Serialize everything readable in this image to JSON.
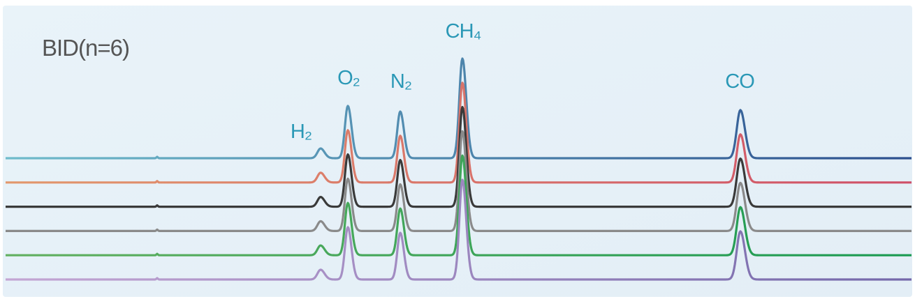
{
  "label": "BID(n=6)",
  "peaks": [
    {
      "label": "H₂"
    },
    {
      "label": "O₂"
    },
    {
      "label": "N₂"
    },
    {
      "label": "CH₄"
    },
    {
      "label": "CO"
    }
  ],
  "traces": [
    {
      "colors": [
        "#6fbccb",
        "#2c4f8e"
      ]
    },
    {
      "colors": [
        "#e2986c",
        "#cf4f68"
      ]
    },
    {
      "colors": [
        "#3a3a3a",
        "#3a3a3a"
      ]
    },
    {
      "colors": [
        "#8a8a8a",
        "#8a8a8a"
      ]
    },
    {
      "colors": [
        "#62b060",
        "#1a9a52"
      ]
    },
    {
      "colors": [
        "#c4a6d4",
        "#7468aa"
      ]
    }
  ]
}
